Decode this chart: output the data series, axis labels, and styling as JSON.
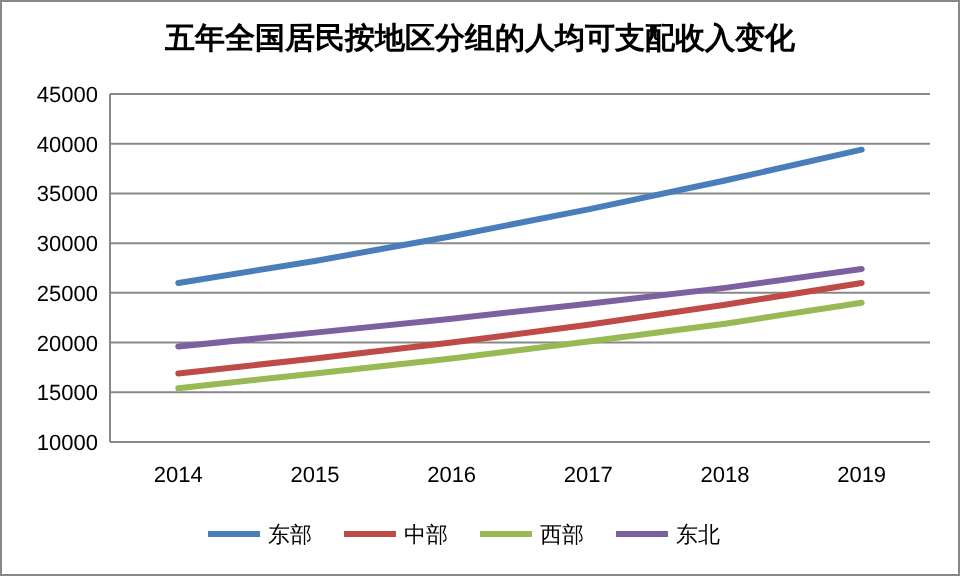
{
  "chart_data": {
    "type": "line",
    "title": "五年全国居民按地区分组的人均可支配收入变化",
    "categories": [
      "2014",
      "2015",
      "2016",
      "2017",
      "2018",
      "2019"
    ],
    "series": [
      {
        "name": "东部",
        "color": "#4a7ebb",
        "values": [
          26000,
          28200,
          30700,
          33400,
          36300,
          39400
        ]
      },
      {
        "name": "中部",
        "color": "#be4b48",
        "values": [
          16900,
          18400,
          20000,
          21800,
          23800,
          26000
        ]
      },
      {
        "name": "西部",
        "color": "#98b954",
        "values": [
          15400,
          16900,
          18400,
          20100,
          21900,
          24000
        ]
      },
      {
        "name": "东北",
        "color": "#7d60a0",
        "values": [
          19600,
          21000,
          22400,
          23900,
          25500,
          27400
        ]
      }
    ],
    "ylim": [
      10000,
      45000
    ],
    "yticks": [
      10000,
      15000,
      20000,
      25000,
      30000,
      35000,
      40000,
      45000
    ],
    "grid": "y",
    "legend": "bottom",
    "marker": "none",
    "line_style": "solid"
  }
}
